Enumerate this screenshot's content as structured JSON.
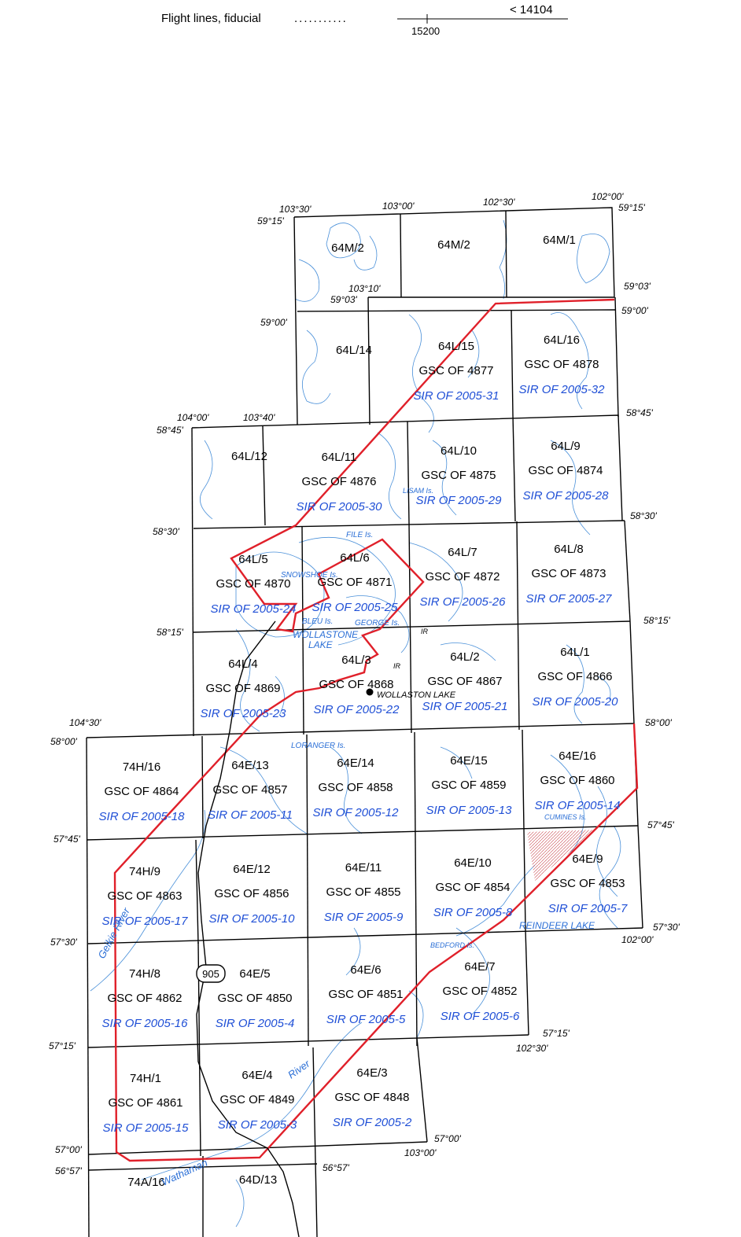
{
  "legend": {
    "flight_lines_label": "Flight lines, fiducial",
    "dots": "...........",
    "upper_value": "< 14104",
    "lower_value": "15200"
  },
  "coords": {
    "lon_103_30": "103°30'",
    "lon_103_00_top": "103°00'",
    "lon_102_30_top": "102°30'",
    "lon_102_00_top": "102°00'",
    "lat_59_15_left": "59°15'",
    "lat_59_15_right": "59°15'",
    "lon_103_10": "103°10'",
    "lat_59_03_left": "59°03'",
    "lat_59_03_right": "59°03'",
    "lat_59_00_left": "59°00'",
    "lat_59_00_right": "59°00'",
    "lon_104_00": "104°00'",
    "lon_103_40": "103°40'",
    "lat_58_45_left": "58°45'",
    "lat_58_45_right": "58°45'",
    "lat_58_30_left": "58°30'",
    "lat_58_30_right": "58°30'",
    "lat_58_15_left": "58°15'",
    "lat_58_15_right": "58°15'",
    "lon_104_30": "104°30'",
    "lat_58_00_left": "58°00'",
    "lat_58_00_right": "58°00'",
    "lat_57_45_left": "57°45'",
    "lat_57_45_right": "57°45'",
    "lat_57_30_left": "57°30'",
    "lat_57_30_right": "57°30'",
    "lon_102_00_bottom": "102°00'",
    "lat_57_15_left": "57°15'",
    "lat_57_15_right": "57°15'",
    "lon_102_30_bottom": "102°30'",
    "lat_57_00_left": "57°00'",
    "lat_57_00_right": "57°00'",
    "lon_103_00_bottom": "103°00'",
    "lat_56_57_left": "56°57'",
    "lat_56_57_right": "56°57'"
  },
  "sheets": [
    {
      "nts": "64M/2",
      "gsc": "",
      "sir": ""
    },
    {
      "nts": "64M/2",
      "gsc": "",
      "sir": ""
    },
    {
      "nts": "64M/1",
      "gsc": "",
      "sir": ""
    },
    {
      "nts": "64L/14",
      "gsc": "",
      "sir": ""
    },
    {
      "nts": "64L/15",
      "gsc": "GSC OF 4877",
      "sir": "SIR OF 2005-31"
    },
    {
      "nts": "64L/16",
      "gsc": "GSC OF 4878",
      "sir": "SIR OF 2005-32"
    },
    {
      "nts": "64L/12",
      "gsc": "",
      "sir": ""
    },
    {
      "nts": "64L/11",
      "gsc": "GSC OF 4876",
      "sir": "SIR OF 2005-30"
    },
    {
      "nts": "64L/10",
      "gsc": "GSC OF 4875",
      "sir": "SIR OF 2005-29"
    },
    {
      "nts": "64L/9",
      "gsc": "GSC OF 4874",
      "sir": "SIR OF 2005-28"
    },
    {
      "nts": "64L/5",
      "gsc": "GSC OF 4870",
      "sir": "SIR OF 2005-24"
    },
    {
      "nts": "64L/6",
      "gsc": "GSC OF 4871",
      "sir": "SIR OF 2005-25"
    },
    {
      "nts": "64L/7",
      "gsc": "GSC OF 4872",
      "sir": "SIR OF 2005-26"
    },
    {
      "nts": "64L/8",
      "gsc": "GSC OF 4873",
      "sir": "SIR OF 2005-27"
    },
    {
      "nts": "64L/4",
      "gsc": "GSC OF 4869",
      "sir": "SIR OF 2005-23"
    },
    {
      "nts": "64L/3",
      "gsc": "GSC OF 4868",
      "sir": "SIR OF 2005-22"
    },
    {
      "nts": "64L/2",
      "gsc": "GSC OF 4867",
      "sir": "SIR OF 2005-21"
    },
    {
      "nts": "64L/1",
      "gsc": "GSC OF 4866",
      "sir": "SIR OF 2005-20"
    },
    {
      "nts": "74H/16",
      "gsc": "GSC OF 4864",
      "sir": "SIR OF 2005-18"
    },
    {
      "nts": "64E/13",
      "gsc": "GSC OF 4857",
      "sir": "SIR OF 2005-11"
    },
    {
      "nts": "64E/14",
      "gsc": "GSC OF 4858",
      "sir": "SIR OF 2005-12"
    },
    {
      "nts": "64E/15",
      "gsc": "GSC OF 4859",
      "sir": "SIR OF 2005-13"
    },
    {
      "nts": "64E/16",
      "gsc": "GSC OF 4860",
      "sir": "SIR OF 2005-14"
    },
    {
      "nts": "74H/9",
      "gsc": "GSC OF 4863",
      "sir": "SIR OF 2005-17"
    },
    {
      "nts": "64E/12",
      "gsc": "GSC OF 4856",
      "sir": "SIR OF 2005-10"
    },
    {
      "nts": "64E/11",
      "gsc": "GSC OF 4855",
      "sir": "SIR OF 2005-9"
    },
    {
      "nts": "64E/10",
      "gsc": "GSC OF 4854",
      "sir": "SIR OF 2005-8"
    },
    {
      "nts": "64E/9",
      "gsc": "GSC OF 4853",
      "sir": "SIR OF 2005-7"
    },
    {
      "nts": "74H/8",
      "gsc": "GSC OF 4862",
      "sir": "SIR OF 2005-16"
    },
    {
      "nts": "64E/5",
      "gsc": "GSC OF 4850",
      "sir": "SIR OF 2005-4"
    },
    {
      "nts": "64E/6",
      "gsc": "GSC OF 4851",
      "sir": "SIR OF 2005-5"
    },
    {
      "nts": "64E/7",
      "gsc": "GSC OF 4852",
      "sir": "SIR OF 2005-6"
    },
    {
      "nts": "74H/1",
      "gsc": "GSC OF 4861",
      "sir": "SIR OF 2005-15"
    },
    {
      "nts": "64E/4",
      "gsc": "GSC OF 4849",
      "sir": "SIR OF 2005-3"
    },
    {
      "nts": "64E/3",
      "gsc": "GSC OF 4848",
      "sir": "SIR OF 2005-2"
    },
    {
      "nts": "74A/16",
      "gsc": "",
      "sir": ""
    },
    {
      "nts": "64D/13",
      "gsc": "",
      "sir": ""
    }
  ],
  "features": {
    "file_is": "FILE Is.",
    "snowshoe_is": "SNOWSHOE Is.",
    "bleu_is": "BLEU Is.",
    "george_is": "GEORGE Is.",
    "wollaston_lake": "WOLLASTONE",
    "lake": "LAKE",
    "ir_1": "IR",
    "ir_2": "IR",
    "lisam_is": "LISAM Is.",
    "lorang_is": "LORANGER Is.",
    "cumines_is": "CUMINES Is.",
    "reindeer_lake": "REINDEER LAKE",
    "bedford_is": "BEDFORD Is.",
    "wollaston_lake_town": "WOLLASTON LAKE",
    "geikie_river": "Geikie River",
    "river_mid": "River",
    "waterfound": "Wathaman",
    "highway": "905"
  },
  "colors": {
    "red_line": "#e0202a",
    "water": "#4a90d9",
    "sir_text": "#1f4fd6"
  }
}
